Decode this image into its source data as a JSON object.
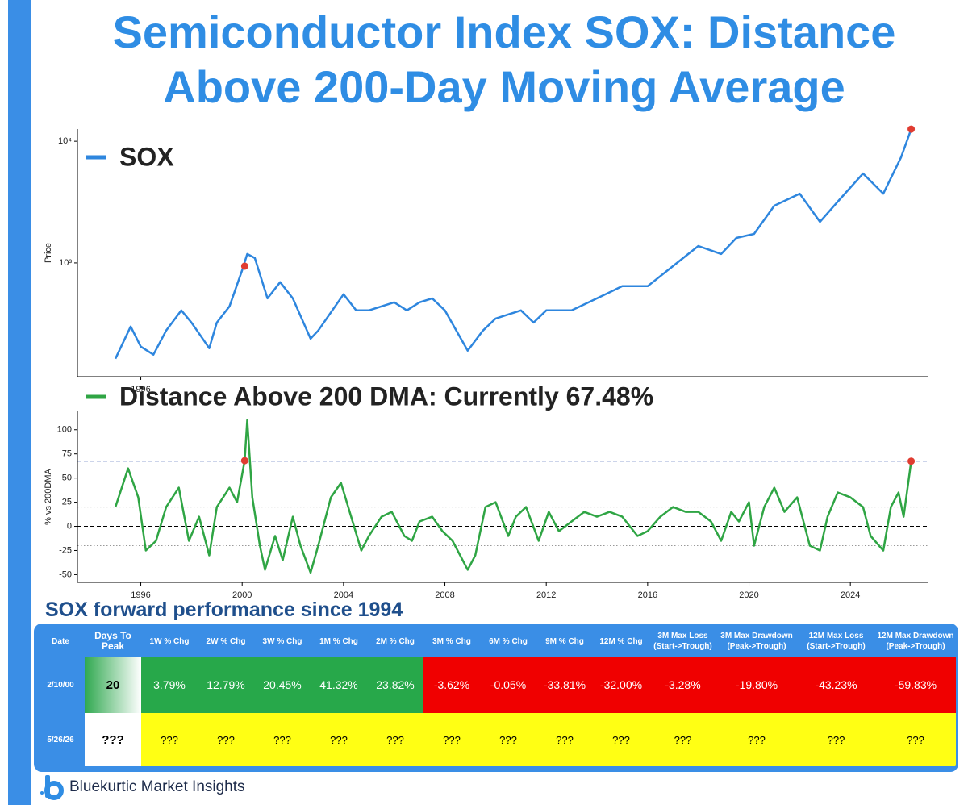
{
  "title": "Semiconductor Index SOX: Distance Above 200-Day Moving Average",
  "chart_data": [
    {
      "type": "line",
      "log_y": true,
      "ylabel": "Price",
      "legend": "upper left",
      "xlim": [
        1993.5,
        2027.05
      ],
      "xticks": [
        1996
      ],
      "ylim": [
        116,
        12600
      ],
      "yticks": [
        {
          "value": 1000,
          "label": "10³"
        },
        {
          "value": 10000,
          "label": "10⁴"
        }
      ],
      "x": [
        1995.0,
        1995.6,
        1996.0,
        1996.5,
        1997.0,
        1997.6,
        1998.0,
        1998.7,
        1999.0,
        1999.5,
        2000.0,
        2000.2,
        2000.5,
        2001.0,
        2001.5,
        2002.0,
        2002.7,
        2003.0,
        2004.0,
        2004.5,
        2005.0,
        2006.0,
        2006.5,
        2007.0,
        2007.5,
        2008.0,
        2008.9,
        2009.5,
        2010.0,
        2011.0,
        2011.5,
        2012.0,
        2013.0,
        2014.0,
        2015.0,
        2016.0,
        2017.0,
        2018.0,
        2018.9,
        2019.5,
        2020.2,
        2021.0,
        2022.0,
        2022.8,
        2023.5,
        2024.5,
        2025.3,
        2026.0,
        2026.4
      ],
      "series": [
        {
          "name": "SOX",
          "color": "#2e86de",
          "values": [
            163,
            300,
            205,
            176,
            278,
            407,
            323,
            199,
            323,
            439,
            872,
            1183,
            1096,
            511,
            694,
            511,
            238,
            278,
            552,
            407,
            407,
            474,
            407,
            474,
            511,
            407,
            190,
            278,
            349,
            407,
            323,
            407,
            407,
            511,
            643,
            643,
            941,
            1377,
            1183,
            1604,
            1731,
            2953,
            3710,
            2176,
            3186,
            5434,
            3710,
            7367,
            12579
          ]
        }
      ],
      "highlights": {
        "color": "#e03c31",
        "x": [
          2000.1,
          2026.4
        ],
        "values": [
          940,
          12579
        ]
      }
    },
    {
      "type": "line",
      "log_y": false,
      "ylabel": "% vs 200DMA",
      "legend": "upper left",
      "xlim": [
        1993.5,
        2027.05
      ],
      "xticks": [
        1996,
        2000,
        2004,
        2008,
        2012,
        2016,
        2020,
        2024
      ],
      "ylim": [
        -58,
        119
      ],
      "yticks": [
        -50,
        -25,
        0,
        25,
        50,
        75,
        100
      ],
      "hlines": [
        {
          "value": 67.48,
          "color": "#3355aa",
          "style": "dashed"
        },
        {
          "value": 0,
          "color": "#000000",
          "style": "dashed"
        },
        {
          "value": 20,
          "color": "#999999",
          "style": "dotted"
        },
        {
          "value": -20,
          "color": "#999999",
          "style": "dotted"
        }
      ],
      "x": [
        1995.0,
        1995.5,
        1995.9,
        1996.2,
        1996.6,
        1997.0,
        1997.5,
        1997.9,
        1998.3,
        1998.7,
        1999.0,
        1999.5,
        1999.8,
        2000.1,
        2000.2,
        2000.4,
        2000.7,
        2000.9,
        2001.3,
        2001.6,
        2002.0,
        2002.3,
        2002.7,
        2003.0,
        2003.5,
        2003.9,
        2004.3,
        2004.7,
        2005.0,
        2005.5,
        2005.9,
        2006.4,
        2006.7,
        2007.0,
        2007.5,
        2007.9,
        2008.3,
        2008.9,
        2009.2,
        2009.6,
        2010.0,
        2010.5,
        2010.8,
        2011.2,
        2011.7,
        2012.1,
        2012.5,
        2013.0,
        2013.5,
        2014.0,
        2014.5,
        2015.0,
        2015.6,
        2016.0,
        2016.5,
        2017.0,
        2017.5,
        2018.0,
        2018.5,
        2018.9,
        2019.3,
        2019.6,
        2020.0,
        2020.2,
        2020.6,
        2021.0,
        2021.4,
        2021.9,
        2022.4,
        2022.8,
        2023.1,
        2023.5,
        2024.0,
        2024.5,
        2024.8,
        2025.3,
        2025.6,
        2025.9,
        2026.1,
        2026.4
      ],
      "series": [
        {
          "name": "Distance Above 200 DMA: Currently 67.48%",
          "color": "#2fa544",
          "values": [
            20,
            60,
            30,
            -25,
            -15,
            20,
            40,
            -15,
            10,
            -30,
            20,
            40,
            25,
            68,
            110,
            30,
            -20,
            -45,
            -10,
            -35,
            10,
            -20,
            -48,
            -20,
            30,
            45,
            10,
            -25,
            -10,
            10,
            15,
            -10,
            -15,
            5,
            10,
            -5,
            -15,
            -45,
            -30,
            20,
            25,
            -10,
            10,
            20,
            -15,
            15,
            -5,
            5,
            15,
            10,
            15,
            10,
            -10,
            -5,
            10,
            20,
            15,
            15,
            5,
            -15,
            15,
            5,
            25,
            -20,
            20,
            40,
            15,
            30,
            -20,
            -25,
            10,
            35,
            30,
            20,
            -10,
            -25,
            20,
            35,
            10,
            67.48
          ]
        }
      ],
      "highlights": {
        "color": "#e03c31",
        "x": [
          2000.1,
          2026.4
        ],
        "values": [
          68,
          67.48
        ]
      }
    }
  ],
  "table": {
    "title": "SOX forward performance since 1994",
    "header": [
      "Date",
      "Days To Peak",
      "1W % Chg",
      "2W % Chg",
      "3W % Chg",
      "1M % Chg",
      "2M % Chg",
      "3M % Chg",
      "6M % Chg",
      "9M % Chg",
      "12M % Chg",
      "3M Max Loss (Start->Trough)",
      "3M Max Drawdown (Peak->Trough)",
      "12M Max Loss (Start->Trough)",
      "12M Max Drawdown (Peak->Trough)"
    ],
    "rows": [
      [
        "2/10/00",
        "20",
        "3.79%",
        "12.79%",
        "20.45%",
        "41.32%",
        "23.82%",
        "-3.62%",
        "-0.05%",
        "-33.81%",
        "-32.00%",
        "-3.28%",
        "-19.80%",
        "-43.23%",
        "-59.83%"
      ],
      [
        "5/26/26",
        "???",
        "???",
        "???",
        "???",
        "???",
        "???",
        "???",
        "???",
        "???",
        "???",
        "???",
        "???",
        "???",
        "???"
      ]
    ]
  },
  "brand": "Bluekurtic Market Insights"
}
